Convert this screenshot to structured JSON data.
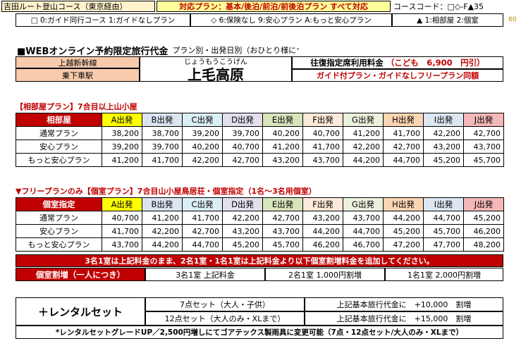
{
  "header": {
    "course_name": "吉田ルート登山コース（東京経由）",
    "plan_support": "対応プラン：基本/後泊/前泊/前後泊プラン すべて対応",
    "course_code": "コースコード：□◇-F▲35",
    "page_number": "60"
  },
  "legend": {
    "guide": "□ 0:ガイド同行コース 1:ガイドなしプラン",
    "security": "◇ 6:保険なし 9:安心プラン A:もっと安心プラン",
    "room": "▲ 1:相部屋 2:個室"
  },
  "title": {
    "main": "■WEBオンライン予約限定旅行代金",
    "sub": "プラン別・出発日別（おひとり様につき／単位：円）"
  },
  "station": {
    "train_label": "上越新幹線",
    "board_label": "乗下車駅",
    "kana": "じょうもうこうげん",
    "name": "上毛高原",
    "fare_label": "往復指定席利用料金",
    "child_fare": "（こども　6,900　円引）",
    "guide_note": "ガイド付プラン・ガイドなしフリープラン同額"
  },
  "shared_section": {
    "title": "【相部屋プラン】7合目以上山小屋",
    "corner": "相部屋",
    "departures": [
      "A出発",
      "B出発",
      "C出発",
      "D出発",
      "E出発",
      "F出発",
      "G出発",
      "H出発",
      "I出発",
      "J出発"
    ],
    "rows": [
      {
        "plan": "通常プラン",
        "prices": [
          "38,200",
          "38,700",
          "39,200",
          "39,700",
          "40,200",
          "40,700",
          "41,200",
          "41,700",
          "42,200",
          "42,700"
        ]
      },
      {
        "plan": "安心プラン",
        "prices": [
          "39,200",
          "39,700",
          "40,200",
          "40,700",
          "41,200",
          "41,700",
          "42,200",
          "42,700",
          "43,200",
          "43,700"
        ]
      },
      {
        "plan": "もっと安心プラン",
        "prices": [
          "41,200",
          "41,700",
          "42,200",
          "42,700",
          "43,200",
          "43,700",
          "44,200",
          "44,700",
          "45,200",
          "45,700"
        ]
      }
    ]
  },
  "private_section": {
    "title": "▼フリープランのみ【個室プラン】7合目山小屋鳥居荘・個室指定（1名～3名用個室）",
    "corner": "個室指定",
    "departures": [
      "A出発",
      "B出発",
      "C出発",
      "D出発",
      "E出発",
      "F出発",
      "G出発",
      "H出発",
      "I出発",
      "J出発"
    ],
    "rows": [
      {
        "plan": "通常プラン",
        "prices": [
          "40,700",
          "41,200",
          "41,700",
          "42,200",
          "42,700",
          "43,200",
          "43,700",
          "44,200",
          "44,700",
          "45,200"
        ]
      },
      {
        "plan": "安心プラン",
        "prices": [
          "41,700",
          "42,200",
          "42,700",
          "43,200",
          "43,700",
          "44,200",
          "44,700",
          "45,200",
          "45,700",
          "46,200"
        ]
      },
      {
        "plan": "もっと安心プラン",
        "prices": [
          "43,700",
          "44,200",
          "44,700",
          "45,200",
          "45,700",
          "46,200",
          "46,700",
          "47,200",
          "47,700",
          "48,200"
        ]
      }
    ]
  },
  "surcharge": {
    "banner": "3名1室は上記料金のまま、2名1室・1名1室は上記料金より以下個室割増料金を追加してください。",
    "label": "個室割増（一人につき）",
    "three": "3名1室  上記料金",
    "two": "2名1室  1,000円割増",
    "one": "1名1室  2,000円割増"
  },
  "rental": {
    "title": "＋レンタルセット",
    "set7": "7点セット（大人・子供）",
    "set12": "12点セット（大人のみ・XLまで）",
    "set7_price": "上記基本旅行代金に　+10,000　割増",
    "set12_price": "上記基本旅行代金に　+15,000　割増",
    "note": "*レンタルセットグレードUP／2,500円増しにてゴアテックス製雨具に変更可能（7点・12点セット/大人のみ・XLまで）"
  },
  "colors": {
    "red": "#c00000",
    "dep_colors": [
      "#ffff00",
      "#dbe5f1",
      "#daeef3",
      "#e4dfec",
      "#d8e4bc",
      "#fde9d9",
      "#ebf1de",
      "#fcd5b4",
      "#dce6f1",
      "#f4b8b8"
    ]
  }
}
